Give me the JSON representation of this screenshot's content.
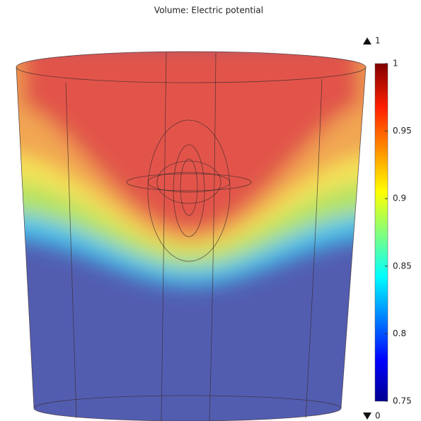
{
  "chart_data": {
    "type": "volume",
    "title": "Volume: Electric potential",
    "colorbar": {
      "lim": [
        0.75,
        1
      ],
      "ticks": [
        0.75,
        0.8,
        0.85,
        0.9,
        0.95,
        1
      ]
    },
    "max": 1,
    "min": 0
  }
}
